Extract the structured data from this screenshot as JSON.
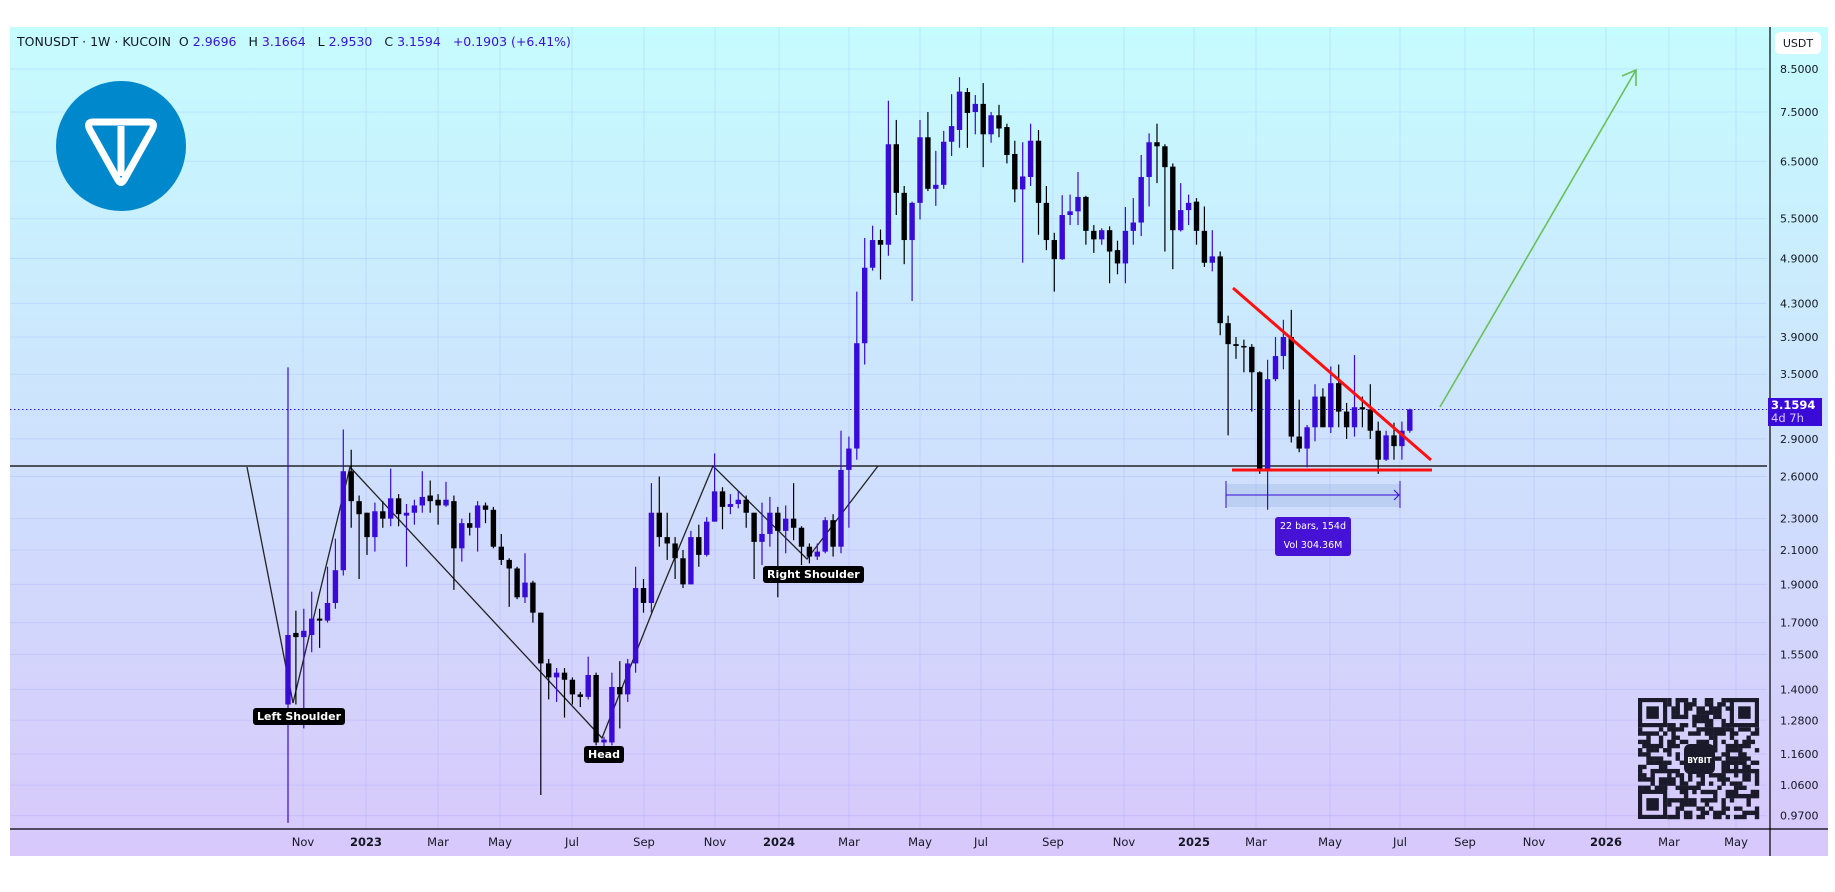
{
  "header": {
    "symbol": "TONUSDT · 1W · KUCOIN",
    "open_label": "O",
    "open": "2.9696",
    "high_label": "H",
    "high": "3.1664",
    "low_label": "L",
    "low": "2.9530",
    "close_label": "C",
    "close": "3.1594",
    "change": "+0.1903 (+6.41%)"
  },
  "price_axis": {
    "currency_button": "USDT",
    "last_price": "3.1594",
    "countdown": "4d 7h"
  },
  "annotations": {
    "left_shoulder": "Left Shoulder",
    "head": "Head",
    "right_shoulder": "Right Shoulder",
    "measure_bars": "22 bars, 154d",
    "measure_volume": "Vol 304.36M"
  },
  "logo": {
    "name": "ton-logo",
    "color": "#0088cc"
  },
  "qr": {
    "name": "bybit-qr-code",
    "brand": "BYBIT"
  },
  "colors": {
    "up": "#3a0ad6",
    "down": "#000000",
    "trendline": "#ff1010",
    "target_arrow": "#6abf5a",
    "neckline": "#000000"
  },
  "chart_data": {
    "type": "candlestick",
    "title": "TONUSDT · 1W · KUCOIN",
    "scale": "log",
    "ylim": [
      0.95,
      8.7
    ],
    "grid": true,
    "y_ticks": [
      "8.5000",
      "7.5000",
      "6.5000",
      "5.5000",
      "4.9000",
      "4.3000",
      "3.9000",
      "3.5000",
      "2.9000",
      "2.6000",
      "2.3000",
      "2.1000",
      "1.9000",
      "1.7000",
      "1.5500",
      "1.4000",
      "1.2800",
      "1.1600",
      "1.0600",
      "0.9700"
    ],
    "x_ticks": [
      {
        "label": "Nov",
        "year": false
      },
      {
        "label": "2023",
        "year": true
      },
      {
        "label": "Mar",
        "year": false
      },
      {
        "label": "May",
        "year": false
      },
      {
        "label": "Jul",
        "year": false
      },
      {
        "label": "Sep",
        "year": false
      },
      {
        "label": "Nov",
        "year": false
      },
      {
        "label": "2024",
        "year": true
      },
      {
        "label": "Mar",
        "year": false
      },
      {
        "label": "May",
        "year": false
      },
      {
        "label": "Jul",
        "year": false
      },
      {
        "label": "Sep",
        "year": false
      },
      {
        "label": "Nov",
        "year": false
      },
      {
        "label": "2025",
        "year": true
      },
      {
        "label": "Mar",
        "year": false
      },
      {
        "label": "May",
        "year": false
      },
      {
        "label": "Jul",
        "year": false
      },
      {
        "label": "Sep",
        "year": false
      },
      {
        "label": "Nov",
        "year": false
      },
      {
        "label": "2026",
        "year": true
      },
      {
        "label": "Mar",
        "year": false
      },
      {
        "label": "May",
        "year": false
      }
    ],
    "columns": [
      "date",
      "open",
      "high",
      "low",
      "close"
    ],
    "candles": [
      [
        "2022-10-17",
        1.34,
        3.57,
        0.95,
        1.64
      ],
      [
        "2022-10-24",
        1.65,
        1.76,
        1.34,
        1.63
      ],
      [
        "2022-10-31",
        1.63,
        1.77,
        1.25,
        1.66
      ],
      [
        "2022-11-07",
        1.64,
        1.86,
        1.56,
        1.72
      ],
      [
        "2022-11-14",
        1.72,
        1.77,
        1.58,
        1.71
      ],
      [
        "2022-11-21",
        1.71,
        2.0,
        1.7,
        1.8
      ],
      [
        "2022-11-28",
        1.8,
        2.17,
        1.77,
        1.98
      ],
      [
        "2022-12-05",
        1.98,
        2.98,
        1.95,
        2.64
      ],
      [
        "2022-12-12",
        2.64,
        2.81,
        2.24,
        2.42
      ],
      [
        "2022-12-19",
        2.42,
        2.46,
        1.93,
        2.33
      ],
      [
        "2022-12-26",
        2.34,
        2.34,
        2.07,
        2.18
      ],
      [
        "2023-01-02",
        2.18,
        2.41,
        2.09,
        2.35
      ],
      [
        "2023-01-09",
        2.35,
        2.42,
        2.24,
        2.3
      ],
      [
        "2023-01-16",
        2.3,
        2.66,
        2.25,
        2.44
      ],
      [
        "2023-01-23",
        2.44,
        2.47,
        2.25,
        2.33
      ],
      [
        "2023-01-30",
        2.32,
        2.4,
        2.0,
        2.34
      ],
      [
        "2023-02-06",
        2.34,
        2.43,
        2.26,
        2.39
      ],
      [
        "2023-02-13",
        2.39,
        2.64,
        2.34,
        2.45
      ],
      [
        "2023-02-20",
        2.46,
        2.57,
        2.34,
        2.42
      ],
      [
        "2023-02-27",
        2.43,
        2.47,
        2.26,
        2.39
      ],
      [
        "2023-03-06",
        2.39,
        2.56,
        2.38,
        2.43
      ],
      [
        "2023-03-13",
        2.42,
        2.46,
        1.87,
        2.11
      ],
      [
        "2023-03-20",
        2.11,
        2.3,
        2.03,
        2.27
      ],
      [
        "2023-03-27",
        2.27,
        2.34,
        2.19,
        2.24
      ],
      [
        "2023-04-03",
        2.24,
        2.42,
        2.09,
        2.39
      ],
      [
        "2023-04-10",
        2.39,
        2.41,
        2.27,
        2.36
      ],
      [
        "2023-04-17",
        2.36,
        2.38,
        2.11,
        2.12
      ],
      [
        "2023-04-24",
        2.12,
        2.2,
        2.01,
        2.04
      ],
      [
        "2023-05-01",
        2.04,
        2.05,
        1.78,
        1.99
      ],
      [
        "2023-05-08",
        1.99,
        2.0,
        1.82,
        1.83
      ],
      [
        "2023-05-15",
        1.83,
        2.08,
        1.8,
        1.91
      ],
      [
        "2023-05-22",
        1.91,
        1.92,
        1.7,
        1.75
      ],
      [
        "2023-05-29",
        1.75,
        1.75,
        1.03,
        1.51
      ],
      [
        "2023-06-05",
        1.51,
        1.53,
        1.36,
        1.45
      ],
      [
        "2023-06-12",
        1.45,
        1.49,
        1.35,
        1.47
      ],
      [
        "2023-06-19",
        1.47,
        1.49,
        1.29,
        1.44
      ],
      [
        "2023-06-26",
        1.44,
        1.45,
        1.34,
        1.38
      ],
      [
        "2023-07-03",
        1.38,
        1.39,
        1.33,
        1.37
      ],
      [
        "2023-07-10",
        1.37,
        1.54,
        1.36,
        1.46
      ],
      [
        "2023-07-17",
        1.46,
        1.47,
        1.19,
        1.2
      ],
      [
        "2023-07-24",
        1.2,
        1.22,
        1.16,
        1.21
      ],
      [
        "2023-07-31",
        1.2,
        1.47,
        1.19,
        1.41
      ],
      [
        "2023-08-07",
        1.41,
        1.52,
        1.25,
        1.38
      ],
      [
        "2023-08-14",
        1.38,
        1.53,
        1.35,
        1.51
      ],
      [
        "2023-08-21",
        1.51,
        2.0,
        1.47,
        1.88
      ],
      [
        "2023-08-28",
        1.88,
        1.93,
        1.75,
        1.8
      ],
      [
        "2023-09-04",
        1.8,
        2.55,
        1.75,
        2.34
      ],
      [
        "2023-09-11",
        2.34,
        2.6,
        2.12,
        2.18
      ],
      [
        "2023-09-18",
        2.18,
        2.34,
        2.04,
        2.14
      ],
      [
        "2023-09-25",
        2.14,
        2.18,
        1.93,
        2.05
      ],
      [
        "2023-10-02",
        2.05,
        2.1,
        1.88,
        1.9
      ],
      [
        "2023-10-09",
        1.9,
        2.22,
        1.9,
        2.18
      ],
      [
        "2023-10-16",
        2.18,
        2.26,
        2.0,
        2.07
      ],
      [
        "2023-10-23",
        2.07,
        2.31,
        2.06,
        2.28
      ],
      [
        "2023-10-30",
        2.28,
        2.78,
        2.28,
        2.49
      ],
      [
        "2023-11-06",
        2.49,
        2.52,
        2.23,
        2.38
      ],
      [
        "2023-11-13",
        2.38,
        2.47,
        2.33,
        2.4
      ],
      [
        "2023-11-20",
        2.4,
        2.49,
        2.37,
        2.43
      ],
      [
        "2023-11-27",
        2.43,
        2.46,
        2.24,
        2.34
      ],
      [
        "2023-12-04",
        2.34,
        2.34,
        1.93,
        2.15
      ],
      [
        "2023-12-11",
        2.15,
        2.41,
        2.01,
        2.2
      ],
      [
        "2023-12-18",
        2.2,
        2.45,
        2.12,
        2.34
      ],
      [
        "2023-12-25",
        2.34,
        2.38,
        1.83,
        2.22
      ],
      [
        "2024-01-01",
        2.22,
        2.39,
        2.08,
        2.3
      ],
      [
        "2024-01-08",
        2.3,
        2.55,
        2.16,
        2.24
      ],
      [
        "2024-01-15",
        2.24,
        2.25,
        2.01,
        2.12
      ],
      [
        "2024-01-22",
        2.12,
        2.14,
        2.02,
        2.06
      ],
      [
        "2024-01-29",
        2.06,
        2.14,
        2.04,
        2.09
      ],
      [
        "2024-02-05",
        2.09,
        2.31,
        2.08,
        2.29
      ],
      [
        "2024-02-12",
        2.29,
        2.33,
        2.06,
        2.12
      ],
      [
        "2024-02-19",
        2.12,
        2.97,
        2.08,
        2.65
      ],
      [
        "2024-02-26",
        2.65,
        2.92,
        2.24,
        2.82
      ],
      [
        "2024-03-04",
        2.82,
        4.45,
        2.73,
        3.83
      ],
      [
        "2024-03-11",
        3.83,
        5.2,
        3.6,
        4.77
      ],
      [
        "2024-03-18",
        4.77,
        5.39,
        4.73,
        5.17
      ],
      [
        "2024-03-25",
        5.17,
        5.33,
        4.61,
        5.1
      ],
      [
        "2024-04-01",
        5.1,
        7.75,
        4.94,
        6.83
      ],
      [
        "2024-04-08",
        6.83,
        7.33,
        5.56,
        5.93
      ],
      [
        "2024-04-15",
        5.93,
        6.05,
        4.82,
        5.17
      ],
      [
        "2024-04-22",
        5.17,
        5.78,
        4.33,
        5.76
      ],
      [
        "2024-04-29",
        5.76,
        7.33,
        5.49,
        6.97
      ],
      [
        "2024-05-06",
        6.97,
        7.5,
        5.96,
        6.0
      ],
      [
        "2024-05-13",
        6.0,
        6.7,
        5.71,
        6.07
      ],
      [
        "2024-05-20",
        6.07,
        7.1,
        6.0,
        6.88
      ],
      [
        "2024-05-27",
        6.88,
        7.9,
        6.6,
        7.2
      ],
      [
        "2024-06-03",
        7.12,
        8.3,
        6.76,
        7.96
      ],
      [
        "2024-06-10",
        7.95,
        8.04,
        6.76,
        7.48
      ],
      [
        "2024-06-17",
        7.5,
        7.88,
        7.03,
        7.68
      ],
      [
        "2024-06-24",
        7.68,
        8.16,
        6.39,
        7.03
      ],
      [
        "2024-07-01",
        7.03,
        7.5,
        6.86,
        7.43
      ],
      [
        "2024-07-08",
        7.43,
        7.66,
        6.97,
        7.15
      ],
      [
        "2024-07-15",
        7.18,
        7.25,
        6.46,
        6.62
      ],
      [
        "2024-07-22",
        6.64,
        6.9,
        5.77,
        5.99
      ],
      [
        "2024-07-29",
        5.99,
        6.87,
        4.84,
        6.22
      ],
      [
        "2024-08-05",
        6.21,
        7.25,
        6.05,
        6.9
      ],
      [
        "2024-08-12",
        6.9,
        7.12,
        5.25,
        5.76
      ],
      [
        "2024-08-19",
        5.76,
        6.05,
        5.02,
        5.17
      ],
      [
        "2024-08-26",
        5.17,
        5.28,
        4.45,
        4.89
      ],
      [
        "2024-09-02",
        4.89,
        5.89,
        4.88,
        5.56
      ],
      [
        "2024-09-09",
        5.56,
        5.9,
        5.4,
        5.62
      ],
      [
        "2024-09-16",
        5.62,
        6.3,
        5.4,
        5.86
      ],
      [
        "2024-09-23",
        5.86,
        5.88,
        5.1,
        5.31
      ],
      [
        "2024-09-30",
        5.31,
        5.4,
        4.98,
        5.18
      ],
      [
        "2024-10-07",
        5.18,
        5.35,
        5.1,
        5.32
      ],
      [
        "2024-10-14",
        5.32,
        5.38,
        4.56,
        5.0
      ],
      [
        "2024-10-21",
        5.02,
        5.16,
        4.68,
        4.83
      ],
      [
        "2024-10-28",
        4.83,
        5.69,
        4.56,
        5.31
      ],
      [
        "2024-11-04",
        5.31,
        5.84,
        5.1,
        5.44
      ],
      [
        "2024-11-11",
        5.44,
        6.62,
        5.23,
        6.21
      ],
      [
        "2024-11-18",
        6.21,
        7.05,
        5.7,
        6.87
      ],
      [
        "2024-11-25",
        6.87,
        7.25,
        6.1,
        6.79
      ],
      [
        "2024-12-02",
        6.79,
        6.83,
        5.0,
        6.39
      ],
      [
        "2024-12-09",
        6.4,
        6.46,
        4.75,
        5.32
      ],
      [
        "2024-12-16",
        5.32,
        6.1,
        5.3,
        5.64
      ],
      [
        "2024-12-23",
        5.64,
        5.9,
        5.4,
        5.76
      ],
      [
        "2024-12-30",
        5.78,
        5.84,
        5.1,
        5.31
      ],
      [
        "2025-01-06",
        5.31,
        5.7,
        4.78,
        4.84
      ],
      [
        "2025-01-13",
        4.84,
        5.32,
        4.72,
        4.93
      ],
      [
        "2025-01-20",
        4.93,
        5.0,
        3.92,
        4.06
      ],
      [
        "2025-01-27",
        4.06,
        4.15,
        2.93,
        3.82
      ],
      [
        "2025-02-03",
        3.82,
        3.9,
        3.66,
        3.8
      ],
      [
        "2025-02-10",
        3.8,
        3.87,
        3.52,
        3.79
      ],
      [
        "2025-02-17",
        3.79,
        3.82,
        3.14,
        3.52
      ],
      [
        "2025-02-24",
        3.52,
        3.53,
        2.62,
        2.65
      ],
      [
        "2025-03-03",
        2.65,
        3.65,
        2.36,
        3.45
      ],
      [
        "2025-03-10",
        3.45,
        3.9,
        3.43,
        3.69
      ],
      [
        "2025-03-17",
        3.69,
        4.1,
        3.55,
        3.9
      ],
      [
        "2025-03-24",
        3.9,
        4.22,
        2.87,
        2.92
      ],
      [
        "2025-03-31",
        2.92,
        3.25,
        2.79,
        2.82
      ],
      [
        "2025-04-07",
        2.82,
        3.02,
        2.67,
        3.0
      ],
      [
        "2025-04-14",
        3.0,
        3.4,
        2.88,
        3.28
      ],
      [
        "2025-04-21",
        3.28,
        3.36,
        3.0,
        3.0
      ],
      [
        "2025-04-28",
        3.0,
        3.58,
        2.95,
        3.41
      ],
      [
        "2025-05-05",
        3.41,
        3.6,
        3.0,
        3.14
      ],
      [
        "2025-05-12",
        3.14,
        3.22,
        2.9,
        3.0
      ],
      [
        "2025-05-19",
        3.0,
        3.7,
        2.92,
        3.18
      ],
      [
        "2025-05-26",
        3.18,
        3.28,
        3.0,
        3.16
      ],
      [
        "2025-06-02",
        3.16,
        3.4,
        2.9,
        2.97
      ],
      [
        "2025-06-09",
        2.97,
        3.05,
        2.62,
        2.73
      ],
      [
        "2025-06-16",
        2.73,
        2.97,
        2.72,
        2.93
      ],
      [
        "2025-06-23",
        2.93,
        3.04,
        2.73,
        2.84
      ],
      [
        "2025-06-30",
        2.84,
        3.05,
        2.73,
        2.97
      ],
      [
        "2025-07-07",
        2.9696,
        3.1664,
        2.953,
        3.1594
      ]
    ]
  }
}
